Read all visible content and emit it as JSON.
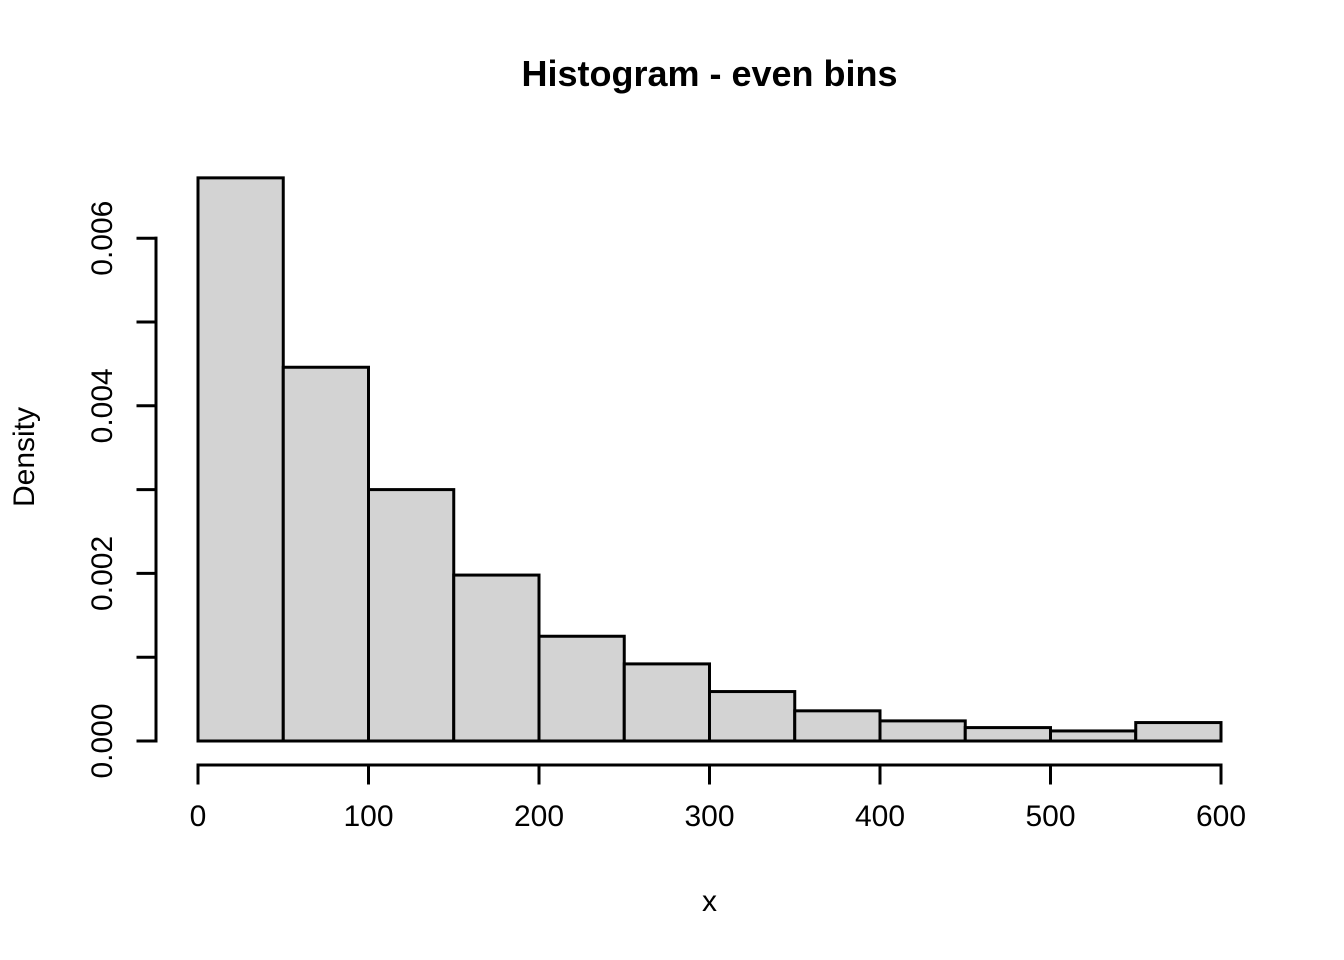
{
  "colors": {
    "background": "#ffffff",
    "bar_fill": "#d3d3d3",
    "bar_stroke": "#000000",
    "axis_color": "#000000",
    "text_color": "#000000"
  },
  "chart_data": {
    "type": "bar",
    "subtype": "histogram",
    "title": "Histogram - even bins",
    "xlabel": "x",
    "ylabel": "Density",
    "xlim": [
      0,
      600
    ],
    "ylim": [
      0,
      0.006
    ],
    "grid": false,
    "legend": null,
    "bin_width": 50,
    "bin_edges": [
      0,
      50,
      100,
      150,
      200,
      250,
      300,
      350,
      400,
      450,
      500,
      550,
      600
    ],
    "densities": [
      0.00672,
      0.00446,
      0.003,
      0.00198,
      0.00125,
      0.00092,
      0.00059,
      0.00036,
      0.00024,
      0.00016,
      0.00012,
      0.00022
    ],
    "x_ticks": [
      {
        "v": 0,
        "label": "0"
      },
      {
        "v": 100,
        "label": "100"
      },
      {
        "v": 200,
        "label": "200"
      },
      {
        "v": 300,
        "label": "300"
      },
      {
        "v": 400,
        "label": "400"
      },
      {
        "v": 500,
        "label": "500"
      },
      {
        "v": 600,
        "label": "600"
      }
    ],
    "y_ticks": [
      {
        "v": 0.0,
        "label": "0.000"
      },
      {
        "v": 0.001,
        "label": ""
      },
      {
        "v": 0.002,
        "label": "0.002"
      },
      {
        "v": 0.003,
        "label": ""
      },
      {
        "v": 0.004,
        "label": "0.004"
      },
      {
        "v": 0.005,
        "label": ""
      },
      {
        "v": 0.006,
        "label": "0.006"
      }
    ]
  }
}
